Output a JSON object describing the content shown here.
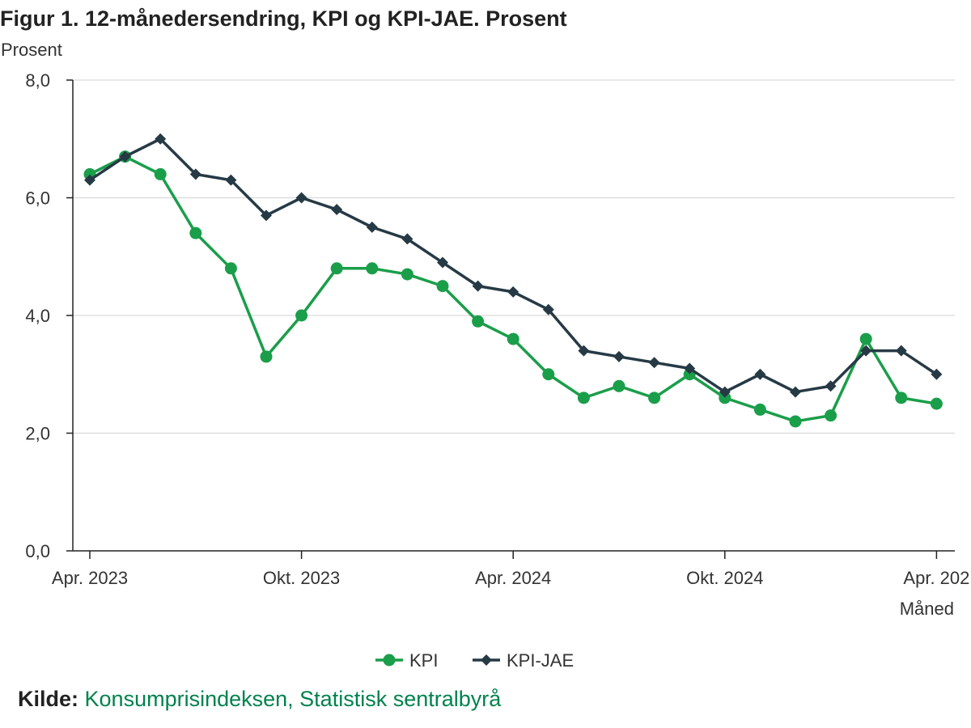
{
  "title": "Figur 1. 12-månedersendring, KPI og KPI-JAE. Prosent",
  "source": {
    "label": "Kilde:",
    "text": "Konsumprisindeksen, Statistisk sentralbyrå"
  },
  "colors": {
    "kpi": "#1a9e4a",
    "kpi_jae": "#263a45",
    "grid": "#d9d9d9",
    "axis": "#222222",
    "source_link": "#00824d"
  },
  "chart_data": {
    "type": "line",
    "title": "Figur 1. 12-månedersendring, KPI og KPI-JAE. Prosent",
    "xlabel": "Måned",
    "ylabel": "Prosent",
    "ylim": [
      0,
      8
    ],
    "y_ticks": [
      "0,0",
      "2,0",
      "4,0",
      "6,0",
      "8,0"
    ],
    "x_tick_labels": [
      {
        "index": 0,
        "label": "Apr. 2023"
      },
      {
        "index": 6,
        "label": "Okt. 2023"
      },
      {
        "index": 12,
        "label": "Apr. 2024"
      },
      {
        "index": 18,
        "label": "Okt. 2024"
      },
      {
        "index": 24,
        "label": "Apr. 202"
      }
    ],
    "grid": true,
    "legend": "bottom-center",
    "x": [
      "2023-04",
      "2023-05",
      "2023-06",
      "2023-07",
      "2023-08",
      "2023-09",
      "2023-10",
      "2023-11",
      "2023-12",
      "2024-01",
      "2024-02",
      "2024-03",
      "2024-04",
      "2024-05",
      "2024-06",
      "2024-07",
      "2024-08",
      "2024-09",
      "2024-10",
      "2024-11",
      "2024-12",
      "2025-01",
      "2025-02",
      "2025-03",
      "2025-04"
    ],
    "series": [
      {
        "name": "KPI",
        "marker": "circle",
        "values": [
          6.4,
          6.7,
          6.4,
          5.4,
          4.8,
          3.3,
          4.0,
          4.8,
          4.8,
          4.7,
          4.5,
          3.9,
          3.6,
          3.0,
          2.6,
          2.8,
          2.6,
          3.0,
          2.6,
          2.4,
          2.2,
          2.3,
          3.6,
          2.6,
          2.5
        ]
      },
      {
        "name": "KPI-JAE",
        "marker": "diamond",
        "values": [
          6.3,
          6.7,
          7.0,
          6.4,
          6.3,
          5.7,
          6.0,
          5.8,
          5.5,
          5.3,
          4.9,
          4.5,
          4.4,
          4.1,
          3.4,
          3.3,
          3.2,
          3.1,
          2.7,
          3.0,
          2.7,
          2.8,
          3.4,
          3.4,
          3.0
        ]
      }
    ]
  }
}
